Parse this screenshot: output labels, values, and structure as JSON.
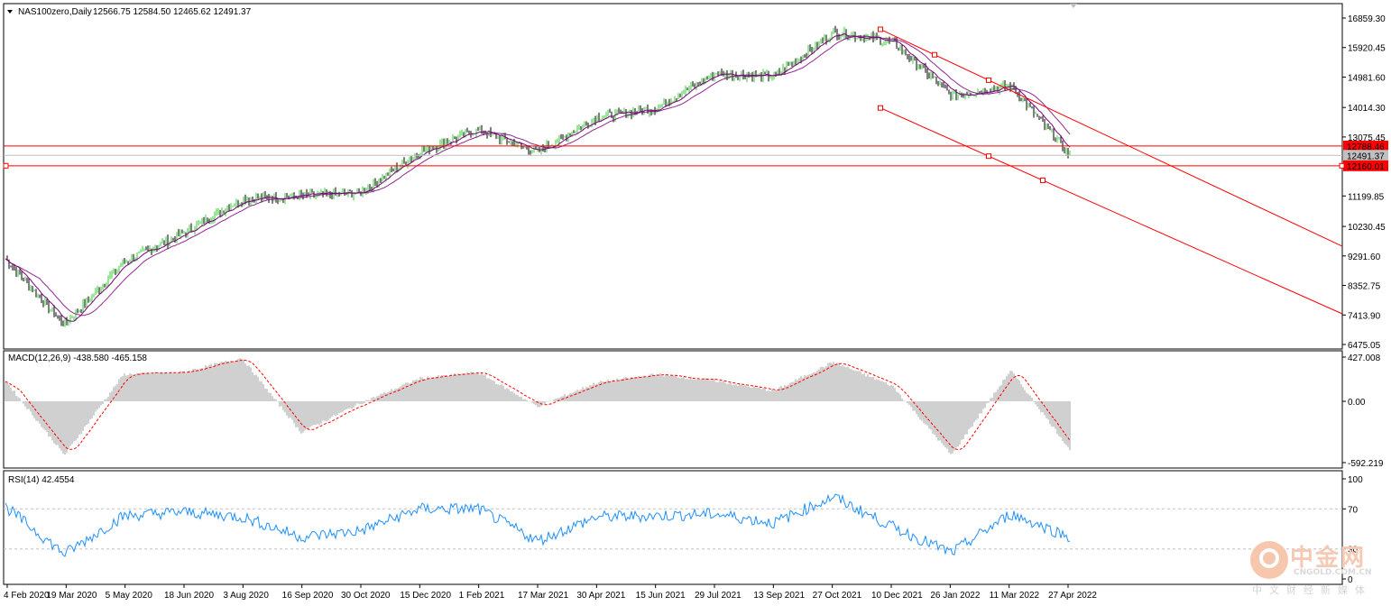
{
  "header": {
    "symbol_label": "NAS100zero,Daily",
    "ohlc": "12566.75 12584.50 12465.62 12491.37"
  },
  "price_axis": {
    "ticks": [
      "16859.30",
      "15920.45",
      "14981.60",
      "14014.30",
      "13075.45",
      "11199.85",
      "10230.45",
      "9291.60",
      "8352.75",
      "7413.90",
      "6475.05"
    ],
    "ymin": 6475.05,
    "ymax": 16859.3
  },
  "levels": {
    "upper": {
      "value": 12788.46,
      "label": "12788.46",
      "color": "#ff0000"
    },
    "current": {
      "value": 12491.37,
      "label": "12491.37",
      "color": "#c0c0c0"
    },
    "lower": {
      "value": 12160.01,
      "label": "12160.01",
      "color": "#ff0000"
    }
  },
  "x_axis": {
    "labels": [
      "4 Feb 2020",
      "19 Mar 2020",
      "5 May 2020",
      "18 Jun 2020",
      "3 Aug 2020",
      "16 Sep 2020",
      "30 Oct 2020",
      "15 Dec 2020",
      "1 Feb 2021",
      "17 Mar 2021",
      "30 Apr 2021",
      "15 Jun 2021",
      "29 Jul 2021",
      "13 Sep 2021",
      "27 Oct 2021",
      "10 Dec 2021",
      "26 Jan 2022",
      "11 Mar 2022",
      "27 Apr 2022"
    ]
  },
  "macd": {
    "label": "MACD(12,26,9) -438.580 -465.158",
    "ticks": [
      "427.008",
      "0.00",
      "-592.219"
    ],
    "ymin": -592.219,
    "ymax": 427.008
  },
  "rsi": {
    "label": "RSI(14) 42.4554",
    "ticks": [
      "100",
      "70",
      "30",
      "0"
    ],
    "levels": [
      70,
      30
    ]
  },
  "colors": {
    "bull": "#32cd32",
    "bear": "#000000",
    "ma": "#800080",
    "channel": "#ff0000",
    "macd_hist": "#a0a0a0",
    "macd_signal": "#ff0000",
    "rsi_line": "#1e90ff"
  },
  "watermark": {
    "name": "中金网",
    "domain": "CNGOLD.COM.CN",
    "tagline": "中文财经新媒体"
  },
  "chart_data": {
    "type": "line",
    "title": "NAS100zero,Daily",
    "xlabel": "",
    "ylabel": "",
    "ylim": [
      6475.05,
      16859.3
    ],
    "x": [
      "4 Feb 2020",
      "19 Mar 2020",
      "5 May 2020",
      "18 Jun 2020",
      "3 Aug 2020",
      "16 Sep 2020",
      "30 Oct 2020",
      "15 Dec 2020",
      "1 Feb 2021",
      "17 Mar 2021",
      "30 Apr 2021",
      "15 Jun 2021",
      "29 Jul 2021",
      "13 Sep 2021",
      "27 Oct 2021",
      "10 Dec 2021",
      "26 Jan 2022",
      "11 Mar 2022",
      "27 Apr 2022"
    ],
    "series": [
      {
        "name": "",
        "values": [
          9200,
          7100,
          9100,
          10000,
          11100,
          11200,
          11300,
          12600,
          13300,
          12600,
          13700,
          14000,
          15100,
          15000,
          16400,
          16100,
          14400,
          14700,
          12500
        ]
      }
    ],
    "macd_values": [
      200,
      -520,
      260,
      280,
      420,
      -300,
      -20,
      220,
      280,
      -50,
      180,
      260,
      200,
      100,
      380,
      150,
      -520,
      300,
      -465
    ],
    "rsi_values": [
      72,
      25,
      63,
      67,
      62,
      42,
      48,
      70,
      70,
      38,
      62,
      63,
      65,
      56,
      82,
      52,
      26,
      65,
      42
    ]
  }
}
